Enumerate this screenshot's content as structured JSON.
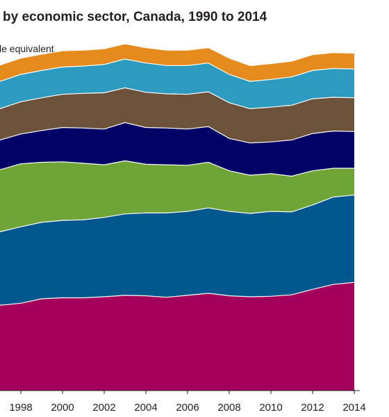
{
  "title": "by economic sector, Canada, 1990 to 2014",
  "unit_label": "le equivalent",
  "chart_data": {
    "type": "area",
    "stacked": true,
    "title": "by economic sector, Canada, 1990 to 2014",
    "ylabel": "le equivalent",
    "xlabel": "",
    "x": [
      1997,
      1998,
      1999,
      2000,
      2001,
      2002,
      2003,
      2004,
      2005,
      2006,
      2007,
      2008,
      2009,
      2010,
      2011,
      2012,
      2013,
      2014
    ],
    "xlim": [
      1997,
      2014.2
    ],
    "xticks": [
      "1998",
      "2000",
      "2002",
      "2004",
      "2006",
      "2008",
      "2010",
      "2012",
      "2014"
    ],
    "ylim": [
      0,
      780
    ],
    "grid": false,
    "legend": "none",
    "series": [
      {
        "color": "#a3005b",
        "values": [
          172,
          176,
          185,
          187,
          187,
          189,
          192,
          191,
          188,
          192,
          196,
          191,
          189,
          190,
          193,
          204,
          214,
          218
        ]
      },
      {
        "color": "#00568f",
        "values": [
          148,
          154,
          154,
          156,
          157,
          160,
          164,
          167,
          170,
          169,
          172,
          170,
          168,
          171,
          167,
          170,
          176,
          176
        ]
      },
      {
        "color": "#6fa536",
        "values": [
          125,
          127,
          121,
          118,
          114,
          106,
          107,
          98,
          97,
          93,
          92,
          82,
          77,
          76,
          72,
          69,
          58,
          54
        ]
      },
      {
        "color": "#010066",
        "values": [
          60,
          60,
          64,
          69,
          71,
          72,
          77,
          74,
          74,
          73,
          72,
          65,
          65,
          64,
          73,
          75,
          75,
          74
        ]
      },
      {
        "color": "#6d523b",
        "values": [
          63,
          65,
          66,
          67,
          70,
          73,
          70,
          71,
          69,
          70,
          70,
          72,
          69,
          70,
          70,
          70,
          68,
          68
        ]
      },
      {
        "color": "#2d9bbf",
        "values": [
          55,
          55,
          55,
          55,
          55,
          57,
          58,
          59,
          57,
          58,
          58,
          57,
          55,
          56,
          57,
          57,
          58,
          58
        ]
      },
      {
        "color": "#e58b1e",
        "values": [
          32,
          32,
          32,
          32,
          31,
          31,
          30,
          30,
          30,
          30,
          30,
          32,
          31,
          31,
          31,
          31,
          31,
          31
        ]
      }
    ]
  }
}
